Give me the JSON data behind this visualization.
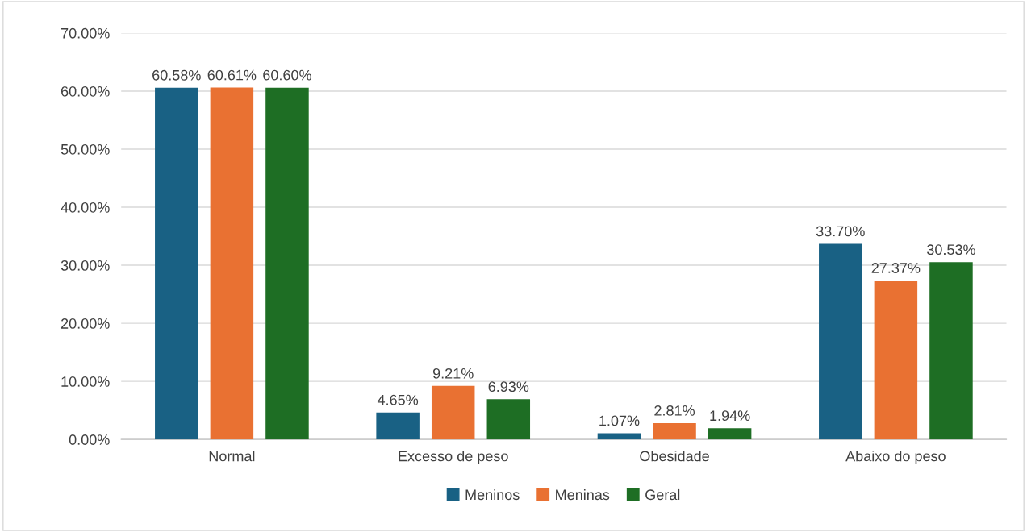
{
  "chart_data": {
    "type": "bar",
    "categories": [
      "Normal",
      "Excesso de peso",
      "Obesidade",
      "Abaixo do peso"
    ],
    "series": [
      {
        "name": "Meninos",
        "color": "#196184",
        "values": [
          60.58,
          4.65,
          1.07,
          33.7
        ],
        "value_labels": [
          "60.58%",
          "4.65%",
          "1.07%",
          "33.70%"
        ]
      },
      {
        "name": "Meninas",
        "color": "#e97132",
        "values": [
          60.61,
          9.21,
          2.81,
          27.37
        ],
        "value_labels": [
          "60.61%",
          "9.21%",
          "2.81%",
          "27.37%"
        ]
      },
      {
        "name": "Geral",
        "color": "#1e6e24",
        "values": [
          60.6,
          6.93,
          1.94,
          30.53
        ],
        "value_labels": [
          "60.60%",
          "6.93%",
          "1.94%",
          "30.53%"
        ]
      }
    ],
    "ylim": [
      0,
      70
    ],
    "yticks": [
      {
        "value": 0,
        "label": "0.00%"
      },
      {
        "value": 10,
        "label": "10.00%"
      },
      {
        "value": 20,
        "label": "20.00%"
      },
      {
        "value": 30,
        "label": "30.00%"
      },
      {
        "value": 40,
        "label": "40.00%"
      },
      {
        "value": 50,
        "label": "50.00%"
      },
      {
        "value": 60,
        "label": "60.00%"
      },
      {
        "value": 70,
        "label": "70.00%"
      }
    ],
    "grid": "y",
    "legend": "bottom"
  }
}
